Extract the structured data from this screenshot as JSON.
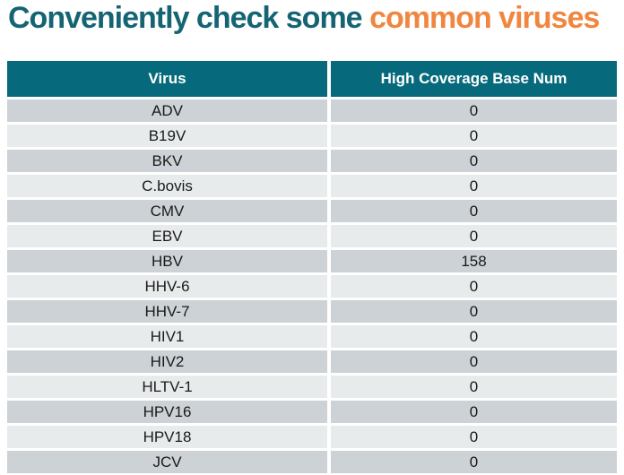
{
  "title": {
    "prefix": "Conveniently check some",
    "highlight": "common viruses"
  },
  "colors": {
    "title_teal": "#156474",
    "title_orange": "#f0863f",
    "header_bg": "#076a7c",
    "header_text": "#ffffff",
    "row_odd_bg": "#ccd2d5",
    "row_even_bg": "#e8ebec",
    "row_text": "#1a1a1a",
    "page_bg": "#ffffff"
  },
  "table": {
    "columns": [
      "Virus",
      "High Coverage Base Num"
    ],
    "rows": [
      {
        "virus": "ADV",
        "value": "0"
      },
      {
        "virus": "B19V",
        "value": "0"
      },
      {
        "virus": "BKV",
        "value": "0"
      },
      {
        "virus": "C.bovis",
        "value": "0"
      },
      {
        "virus": "CMV",
        "value": "0"
      },
      {
        "virus": "EBV",
        "value": "0"
      },
      {
        "virus": "HBV",
        "value": "158"
      },
      {
        "virus": "HHV-6",
        "value": "0"
      },
      {
        "virus": "HHV-7",
        "value": "0"
      },
      {
        "virus": "HIV1",
        "value": "0"
      },
      {
        "virus": "HIV2",
        "value": "0"
      },
      {
        "virus": "HLTV-1",
        "value": "0"
      },
      {
        "virus": "HPV16",
        "value": "0"
      },
      {
        "virus": "HPV18",
        "value": "0"
      },
      {
        "virus": "JCV",
        "value": "0"
      }
    ]
  }
}
